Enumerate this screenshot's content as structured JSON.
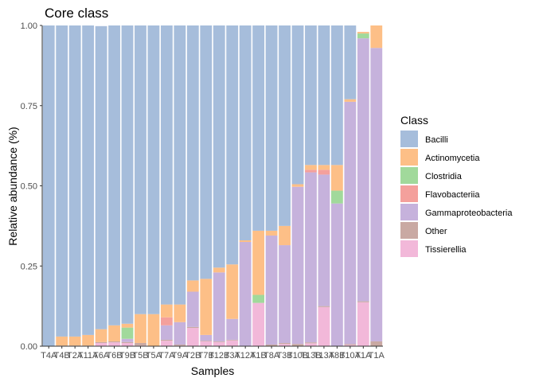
{
  "chart_data": {
    "type": "bar",
    "stacked": true,
    "title": "Core class",
    "xlabel": "Samples",
    "ylabel": "Relative abundance (%)",
    "ylim": [
      0,
      1
    ],
    "yticks": [
      "0.00",
      "0.25",
      "0.50",
      "0.75",
      "1.00"
    ],
    "grid": false,
    "legend": {
      "title": "Class",
      "position": "right"
    },
    "categories": [
      "T4A",
      "T4B",
      "T2A",
      "T11A",
      "T6A",
      "T6B",
      "T9B",
      "T5B",
      "T5A",
      "T7A",
      "T9A",
      "T2B",
      "T7B",
      "T12B",
      "T3A",
      "T12A",
      "T1B",
      "T8A",
      "T3B",
      "T10B",
      "T13B",
      "T13A",
      "T8B",
      "T10A",
      "T1A",
      "T1A"
    ],
    "series": [
      {
        "name": "Bacilli",
        "color": "#a6bddb",
        "values": [
          1.0,
          0.97,
          0.97,
          0.965,
          0.945,
          0.935,
          0.93,
          0.9,
          0.9,
          0.87,
          0.87,
          0.795,
          0.79,
          0.755,
          0.745,
          0.67,
          0.64,
          0.64,
          0.625,
          0.495,
          0.435,
          0.435,
          0.435,
          0.23,
          0.0,
          0.0
        ]
      },
      {
        "name": "Actinomycetia",
        "color": "#fdbf87",
        "values": [
          0.0,
          0.028,
          0.028,
          0.033,
          0.04,
          0.05,
          0.012,
          0.09,
          0.1,
          0.04,
          0.055,
          0.035,
          0.175,
          0.015,
          0.17,
          0.005,
          0.2,
          0.015,
          0.06,
          0.008,
          0.015,
          0.015,
          0.08,
          0.008,
          0.005,
          0.07
        ]
      },
      {
        "name": "Clostridia",
        "color": "#a1d99b",
        "values": [
          0.0,
          0.0,
          0.0,
          0.0,
          0.0,
          0.0,
          0.035,
          0.0,
          0.0,
          0.0,
          0.0,
          0.0,
          0.0,
          0.0,
          0.0,
          0.0,
          0.025,
          0.0,
          0.0,
          0.0,
          0.0,
          0.0,
          0.04,
          0.0,
          0.015,
          0.0
        ]
      },
      {
        "name": "Flavobacteriia",
        "color": "#f4a09c",
        "values": [
          0.0,
          0.0,
          0.0,
          0.0,
          0.0,
          0.0,
          0.0,
          0.0,
          0.0,
          0.025,
          0.0,
          0.0,
          0.0,
          0.0,
          0.0,
          0.0,
          0.0,
          0.0,
          0.0,
          0.0,
          0.008,
          0.015,
          0.0,
          0.0,
          0.0,
          0.0
        ]
      },
      {
        "name": "Gammaproteobacteria",
        "color": "#c6b2dc",
        "values": [
          0.0,
          0.0,
          0.0,
          0.0,
          0.0,
          0.0,
          0.01,
          0.0,
          0.0,
          0.045,
          0.07,
          0.11,
          0.018,
          0.215,
          0.065,
          0.325,
          0.0,
          0.34,
          0.305,
          0.49,
          0.53,
          0.41,
          0.445,
          0.755,
          0.82,
          0.915
        ]
      },
      {
        "name": "Other",
        "color": "#c9a9a3",
        "values": [
          0.0,
          0.002,
          0.002,
          0.002,
          0.003,
          0.003,
          0.003,
          0.008,
          0.0,
          0.003,
          0.003,
          0.003,
          0.002,
          0.002,
          0.002,
          0.0,
          0.0,
          0.005,
          0.003,
          0.007,
          0.003,
          0.003,
          0.0,
          0.003,
          0.003,
          0.015
        ]
      },
      {
        "name": "Tissierellia",
        "color": "#f2b8d9",
        "values": [
          0.0,
          0.0,
          0.0,
          0.0,
          0.01,
          0.012,
          0.01,
          0.002,
          0.0,
          0.017,
          0.002,
          0.057,
          0.015,
          0.013,
          0.018,
          0.0,
          0.135,
          0.0,
          0.007,
          0.0,
          0.009,
          0.122,
          0.0,
          0.004,
          0.137,
          0.0
        ]
      }
    ]
  }
}
